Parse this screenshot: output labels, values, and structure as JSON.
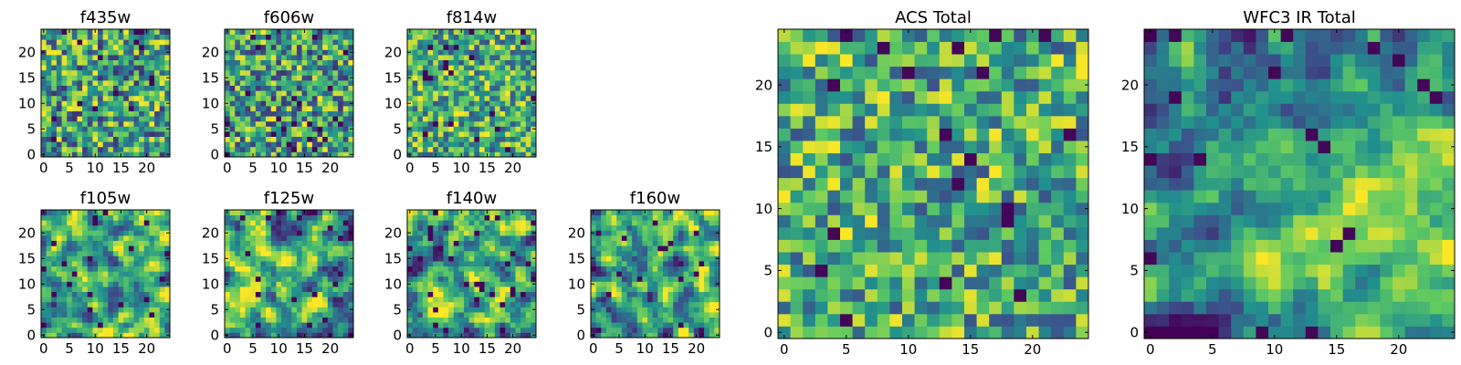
{
  "figure": {
    "colormap": "viridis",
    "colormap_stops": [
      "#440154",
      "#3b528b",
      "#21908d",
      "#5dc963",
      "#fde725"
    ]
  },
  "chart_data": [
    {
      "type": "heatmap",
      "title": "f435w",
      "grid_size": [
        25,
        25
      ],
      "xticks": [
        0,
        5,
        10,
        15,
        20
      ],
      "yticks": [
        0,
        5,
        10,
        15,
        20
      ],
      "xlim": [
        0,
        24
      ],
      "ylim": [
        0,
        24
      ],
      "value_range": [
        0,
        1
      ],
      "texture": "noise",
      "seed": 11
    },
    {
      "type": "heatmap",
      "title": "f606w",
      "grid_size": [
        25,
        25
      ],
      "xticks": [
        0,
        5,
        10,
        15,
        20
      ],
      "yticks": [
        0,
        5,
        10,
        15,
        20
      ],
      "xlim": [
        0,
        24
      ],
      "ylim": [
        0,
        24
      ],
      "value_range": [
        0,
        1
      ],
      "texture": "noise",
      "seed": 23
    },
    {
      "type": "heatmap",
      "title": "f814w",
      "grid_size": [
        25,
        25
      ],
      "xticks": [
        0,
        5,
        10,
        15,
        20
      ],
      "yticks": [
        0,
        5,
        10,
        15,
        20
      ],
      "xlim": [
        0,
        24
      ],
      "ylim": [
        0,
        24
      ],
      "value_range": [
        0,
        1
      ],
      "texture": "noise_bright",
      "seed": 37
    },
    {
      "type": "heatmap",
      "title": "f105w",
      "grid_size": [
        25,
        25
      ],
      "xticks": [
        0,
        5,
        10,
        15,
        20
      ],
      "yticks": [
        0,
        5,
        10,
        15,
        20
      ],
      "xlim": [
        0,
        24
      ],
      "ylim": [
        0,
        24
      ],
      "value_range": [
        0,
        1
      ],
      "texture": "smooth",
      "seed": 41
    },
    {
      "type": "heatmap",
      "title": "f125w",
      "grid_size": [
        25,
        25
      ],
      "xticks": [
        0,
        5,
        10,
        15,
        20
      ],
      "yticks": [
        0,
        5,
        10,
        15,
        20
      ],
      "xlim": [
        0,
        24
      ],
      "ylim": [
        0,
        24
      ],
      "value_range": [
        0,
        1
      ],
      "texture": "smooth",
      "seed": 53
    },
    {
      "type": "heatmap",
      "title": "f140w",
      "grid_size": [
        25,
        25
      ],
      "xticks": [
        0,
        5,
        10,
        15,
        20
      ],
      "yticks": [
        0,
        5,
        10,
        15,
        20
      ],
      "xlim": [
        0,
        24
      ],
      "ylim": [
        0,
        24
      ],
      "value_range": [
        0,
        1
      ],
      "texture": "smooth",
      "seed": 67
    },
    {
      "type": "heatmap",
      "title": "f160w",
      "grid_size": [
        25,
        25
      ],
      "xticks": [
        0,
        5,
        10,
        15,
        20
      ],
      "yticks": [
        0,
        5,
        10,
        15,
        20
      ],
      "xlim": [
        0,
        24
      ],
      "ylim": [
        0,
        24
      ],
      "value_range": [
        0,
        1
      ],
      "texture": "smooth",
      "seed": 79
    },
    {
      "type": "heatmap",
      "title": "ACS Total",
      "grid_size": [
        25,
        25
      ],
      "xticks": [
        0,
        5,
        10,
        15,
        20
      ],
      "yticks": [
        0,
        5,
        10,
        15,
        20
      ],
      "xlim": [
        0,
        24
      ],
      "ylim": [
        0,
        24
      ],
      "value_range": [
        0,
        1
      ],
      "texture": "noise_bright",
      "seed": 83
    },
    {
      "type": "heatmap",
      "title": "WFC3 IR Total",
      "grid_size": [
        25,
        25
      ],
      "xticks": [
        0,
        5,
        10,
        15,
        20
      ],
      "yticks": [
        0,
        5,
        10,
        15,
        20
      ],
      "xlim": [
        0,
        24
      ],
      "ylim": [
        0,
        24
      ],
      "value_range": [
        0,
        1
      ],
      "texture": "smooth_peak",
      "seed": 97
    }
  ]
}
